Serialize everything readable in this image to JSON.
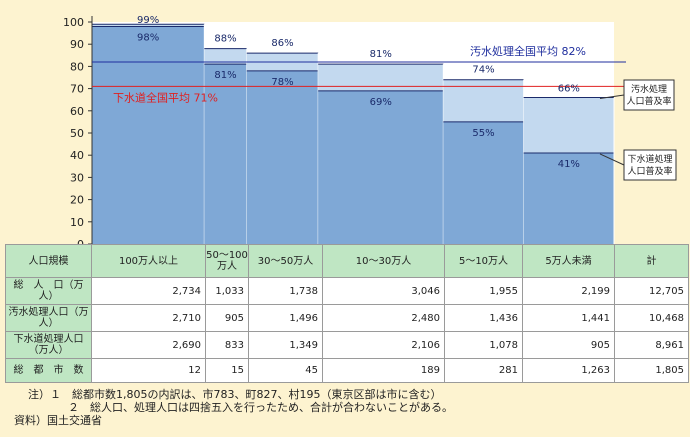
{
  "chart_data": {
    "type": "bar",
    "ylim": [
      0,
      100
    ],
    "yticks": [
      0,
      10,
      20,
      30,
      40,
      50,
      60,
      70,
      80,
      90,
      100
    ],
    "categories": [
      "100万人以上",
      "50〜100万人",
      "30〜50万人",
      "10〜30万人",
      "5〜10万人",
      "5万人未満"
    ],
    "series": [
      {
        "name": "汚水処理人口普及率",
        "values": [
          99,
          88,
          86,
          81,
          74,
          66
        ],
        "labels": [
          "99%",
          "88%",
          "86%",
          "81%",
          "74%",
          "66%"
        ]
      },
      {
        "name": "下水道処理人口普及率",
        "values": [
          98,
          81,
          78,
          69,
          55,
          41
        ],
        "labels": [
          "98%",
          "81%",
          "78%",
          "69%",
          "55%",
          "41%"
        ]
      }
    ],
    "bar_width_weights": [
      2734,
      1033,
      1738,
      3046,
      1955,
      2199
    ],
    "reference_lines": [
      {
        "label": "汚水処理全国平均 82%",
        "value": 82,
        "color": "#1f2e9e"
      },
      {
        "label": "下水道全国平均 71%",
        "value": 71,
        "color": "#e02020"
      }
    ],
    "legend": [
      {
        "label": "汚水処理\n人口普及率",
        "series": 0
      },
      {
        "label": "下水道処理\n人口普及率",
        "series": 1
      }
    ],
    "colors": {
      "upper": "#c3d9ef",
      "lower": "#7fa8d6",
      "bar_top_line": "#1a2a6a",
      "axis": "#333333"
    }
  },
  "table": {
    "header": [
      "人口規模",
      "100万人以上",
      "50〜100万人",
      "30〜50万人",
      "10〜30万人",
      "5〜10万人",
      "5万人未満",
      "計"
    ],
    "rows": [
      {
        "label": "総　人　口（万人）",
        "values": [
          "2,734",
          "1,033",
          "1,738",
          "3,046",
          "1,955",
          "2,199",
          "12,705"
        ]
      },
      {
        "label": "汚水処理人口（万人）",
        "values": [
          "2,710",
          "905",
          "1,496",
          "2,480",
          "1,436",
          "1,441",
          "10,468"
        ]
      },
      {
        "label": "下水道処理人口（万人）",
        "values": [
          "2,690",
          "833",
          "1,349",
          "2,106",
          "1,078",
          "905",
          "8,961"
        ]
      },
      {
        "label": "総　都　市　数",
        "values": [
          "12",
          "15",
          "45",
          "189",
          "281",
          "1,263",
          "1,805"
        ]
      }
    ]
  },
  "notes": {
    "note1": "注）１　総都市数1,805の内訳は、市783、町827、村195（東京区部は市に含む）",
    "note2": "２　総人口、処理人口は四捨五入を行ったため、合計が合わないことがある。",
    "source": "資料）国土交通省"
  }
}
